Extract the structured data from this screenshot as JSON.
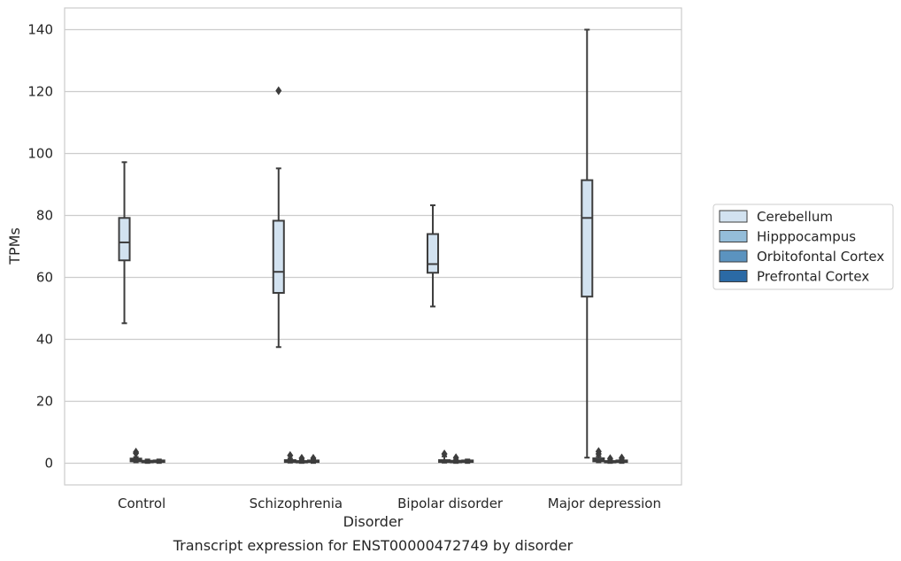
{
  "chart_data": {
    "type": "box",
    "title": "",
    "caption": "Transcript expression for ENST00000472749 by disorder",
    "xlabel": "Disorder",
    "ylabel": "TPMs",
    "ylim": [
      -7,
      147
    ],
    "yticks": [
      0,
      20,
      40,
      60,
      80,
      100,
      120,
      140
    ],
    "grid": "horizontal",
    "legend_position": "right",
    "categories": [
      "Control",
      "Schizophrenia",
      "Bipolar disorder",
      "Major depression"
    ],
    "series": [
      {
        "name": "Cerebellum",
        "color": "#d2e2f0",
        "boxes": [
          {
            "whislo": 45.2,
            "q1": 65.5,
            "med": 71.3,
            "q3": 79.2,
            "whishi": 97.2,
            "fliers": []
          },
          {
            "whislo": 37.5,
            "q1": 55.0,
            "med": 61.8,
            "q3": 78.3,
            "whishi": 95.2,
            "fliers": [
              120.3
            ]
          },
          {
            "whislo": 50.6,
            "q1": 61.5,
            "med": 64.3,
            "q3": 74.0,
            "whishi": 83.3,
            "fliers": []
          },
          {
            "whislo": 1.8,
            "q1": 53.8,
            "med": 79.2,
            "q3": 91.4,
            "whishi": 140.0,
            "fliers": []
          }
        ]
      },
      {
        "name": "Hipppocampus",
        "color": "#94bdd9",
        "boxes": [
          {
            "whislo": 0.3,
            "q1": 0.6,
            "med": 1.0,
            "q3": 1.5,
            "whishi": 2.0,
            "fliers": [
              3.2,
              3.6
            ]
          },
          {
            "whislo": 0.2,
            "q1": 0.4,
            "med": 0.7,
            "q3": 1.0,
            "whishi": 1.5,
            "fliers": [
              2.5
            ]
          },
          {
            "whislo": 0.2,
            "q1": 0.4,
            "med": 0.6,
            "q3": 1.0,
            "whishi": 2.2,
            "fliers": [
              3.0
            ]
          },
          {
            "whislo": 0.3,
            "q1": 0.6,
            "med": 1.0,
            "q3": 1.6,
            "whishi": 2.2,
            "fliers": [
              3.0,
              3.8
            ]
          }
        ]
      },
      {
        "name": "Orbitofontal Cortex",
        "color": "#5b93bf",
        "boxes": [
          {
            "whislo": 0.1,
            "q1": 0.3,
            "med": 0.5,
            "q3": 0.8,
            "whishi": 1.2,
            "fliers": []
          },
          {
            "whislo": 0.1,
            "q1": 0.3,
            "med": 0.5,
            "q3": 0.7,
            "whishi": 1.0,
            "fliers": [
              1.6
            ]
          },
          {
            "whislo": 0.1,
            "q1": 0.3,
            "med": 0.5,
            "q3": 0.8,
            "whishi": 1.1,
            "fliers": [
              1.8
            ]
          },
          {
            "whislo": 0.1,
            "q1": 0.3,
            "med": 0.4,
            "q3": 0.7,
            "whishi": 1.0,
            "fliers": [
              1.5
            ]
          }
        ]
      },
      {
        "name": "Prefrontal Cortex",
        "color": "#2b6aa5",
        "boxes": [
          {
            "whislo": 0.1,
            "q1": 0.4,
            "med": 0.6,
            "q3": 0.9,
            "whishi": 1.2,
            "fliers": []
          },
          {
            "whislo": 0.1,
            "q1": 0.4,
            "med": 0.6,
            "q3": 0.9,
            "whishi": 1.2,
            "fliers": [
              1.6
            ]
          },
          {
            "whislo": 0.1,
            "q1": 0.4,
            "med": 0.6,
            "q3": 0.9,
            "whishi": 1.2,
            "fliers": []
          },
          {
            "whislo": 0.1,
            "q1": 0.4,
            "med": 0.6,
            "q3": 0.9,
            "whishi": 1.2,
            "fliers": [
              1.7
            ]
          }
        ]
      }
    ]
  }
}
